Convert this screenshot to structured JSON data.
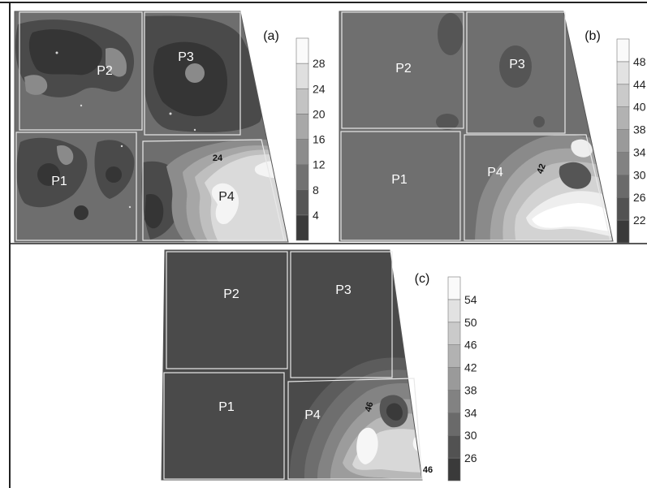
{
  "chart_data": [
    {
      "type": "heatmap",
      "panel_label": "(a)",
      "title": "",
      "plots": [
        "P1",
        "P2",
        "P3",
        "P4"
      ],
      "legend_ticks": [
        4,
        8,
        12,
        16,
        20,
        24,
        28
      ],
      "colorbar_range": [
        0,
        32
      ],
      "contour_labels": [
        24
      ],
      "grid": false
    },
    {
      "type": "heatmap",
      "panel_label": "(b)",
      "title": "",
      "plots": [
        "P1",
        "P2",
        "P3",
        "P4"
      ],
      "legend_ticks": [
        "22",
        "26",
        "30",
        "34",
        "38",
        "40",
        "44",
        "48"
      ],
      "colorbar_range": [
        18,
        52
      ],
      "contour_labels": [
        42
      ],
      "grid": false
    },
    {
      "type": "heatmap",
      "panel_label": "(c)",
      "title": "",
      "plots": [
        "P1",
        "P2",
        "P3",
        "P4"
      ],
      "legend_ticks": [
        26,
        30,
        34,
        38,
        42,
        46,
        50,
        54
      ],
      "colorbar_range": [
        22,
        58
      ],
      "contour_labels": [
        46,
        46
      ],
      "grid": false
    }
  ]
}
